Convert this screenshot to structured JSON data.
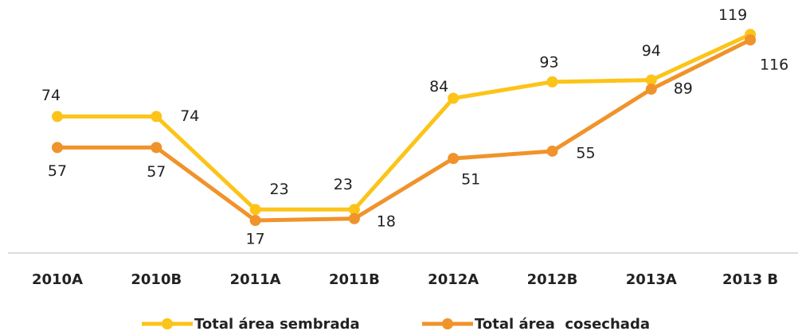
{
  "chart_data": {
    "type": "line",
    "categories": [
      "2010A",
      "2010B",
      "2011A",
      "2011B",
      "2012A",
      "2012B",
      "2013A",
      "2013 B"
    ],
    "series": [
      {
        "name": "Total área sembrada",
        "color": "#fcc419",
        "values": [
          74,
          74,
          23,
          23,
          84,
          93,
          94,
          119
        ]
      },
      {
        "name": "Total área  cosechada",
        "color": "#f0932b",
        "values": [
          57,
          57,
          17,
          18,
          51,
          55,
          89,
          116
        ]
      }
    ],
    "ylim": [
      0,
      120
    ],
    "legend": "bottom"
  }
}
